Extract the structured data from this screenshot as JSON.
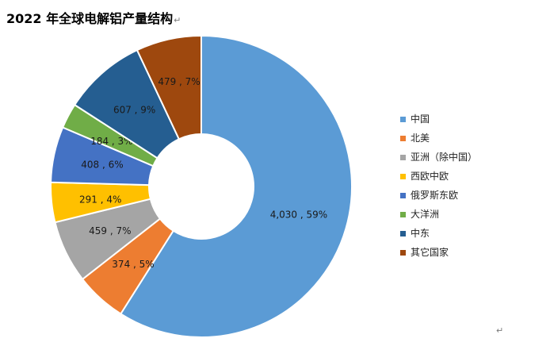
{
  "title": "2022 年全球电解铝产量结构",
  "title_mark": "↵",
  "corner_mark": "↵",
  "chart_data": {
    "type": "pie",
    "title": "2022 年全球电解铝产量结构",
    "donut": true,
    "legend_position": "right",
    "slices": [
      {
        "name": "中国",
        "value": 4030,
        "percent": "59%",
        "label": "4,030 , 59%",
        "color": "#5B9BD5"
      },
      {
        "name": "北美",
        "value": 374,
        "percent": "5%",
        "label": "374 , 5%",
        "color": "#ED7D31"
      },
      {
        "name": "亚洲（除中国）",
        "value": 459,
        "percent": "7%",
        "label": "459 , 7%",
        "color": "#A5A5A5"
      },
      {
        "name": "西欧中欧",
        "value": 291,
        "percent": "4%",
        "label": "291 , 4%",
        "color": "#FFC000"
      },
      {
        "name": "俄罗斯东欧",
        "value": 408,
        "percent": "6%",
        "label": "408 , 6%",
        "color": "#4472C4"
      },
      {
        "name": "大洋洲",
        "value": 184,
        "percent": "3%",
        "label": "184 , 3%",
        "color": "#70AD47"
      },
      {
        "name": "中东",
        "value": 607,
        "percent": "9%",
        "label": "607 , 9%",
        "color": "#255E91"
      },
      {
        "name": "其它国家",
        "value": 479,
        "percent": "7%",
        "label": "479 , 7%",
        "color": "#9E480E"
      }
    ]
  }
}
